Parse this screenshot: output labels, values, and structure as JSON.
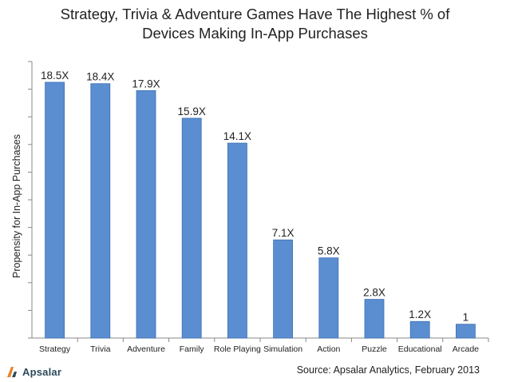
{
  "chart_data": {
    "type": "bar",
    "title_line1": "Strategy, Trivia & Adventure Games Have The Highest % of",
    "title_line2": "Devices Making In-App Purchases",
    "ylabel": "Propensity for In-App Purchases",
    "xlabel": "",
    "categories": [
      "Strategy",
      "Trivia",
      "Adventure",
      "Family",
      "Role Playing",
      "Simulation",
      "Action",
      "Puzzle",
      "Educational",
      "Arcade"
    ],
    "values": [
      18.5,
      18.4,
      17.9,
      15.9,
      14.1,
      7.1,
      5.8,
      2.8,
      1.2,
      1
    ],
    "data_labels": [
      "18.5X",
      "18.4X",
      "17.9X",
      "15.9X",
      "14.1X",
      "7.1X",
      "5.8X",
      "2.8X",
      "1.2X",
      "1"
    ],
    "ylim": [
      0,
      20
    ],
    "ytick_count": 11,
    "grid": false,
    "bar_color": "#5b8ed0",
    "bar_edge_color": "#3b6fb5",
    "source": "Source: Apsalar Analytics, February 2013"
  },
  "brand": {
    "name": "Apsalar",
    "logo_icon": "apsalar-logo-icon",
    "logo_color": "#e8812b"
  }
}
